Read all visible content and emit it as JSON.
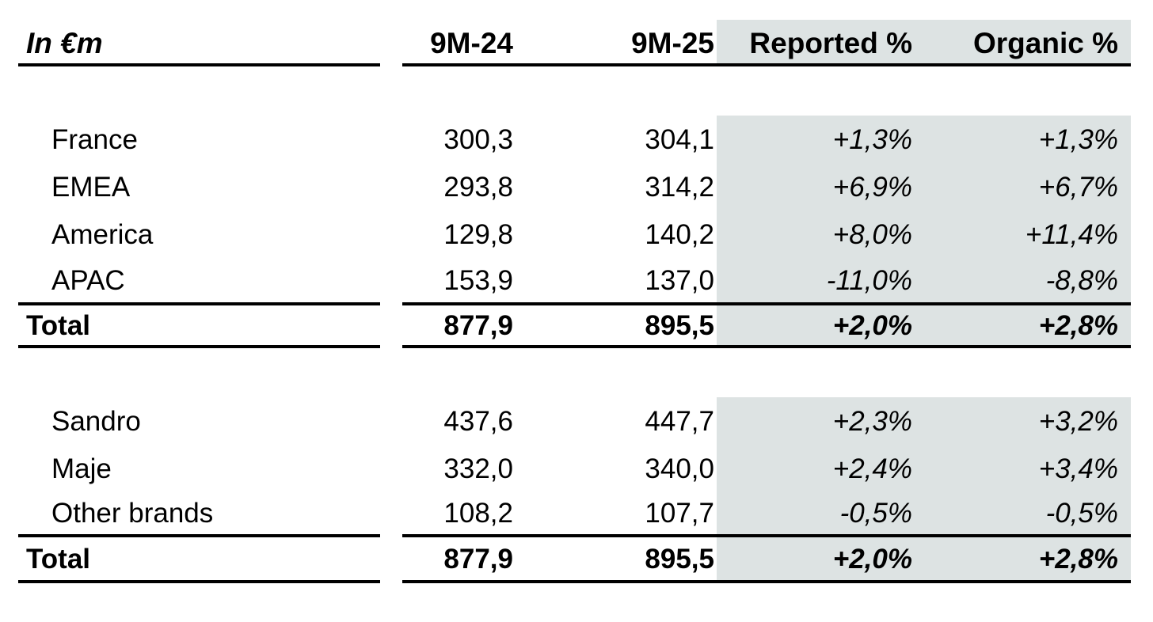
{
  "table": {
    "unit_label": "In €m",
    "columns": {
      "period_prev": "9M-24",
      "period_curr": "9M-25",
      "reported": "Reported %",
      "organic": "Organic %"
    },
    "colors": {
      "highlight": "#dde3e3",
      "text": "#000000",
      "rule": "#000000"
    },
    "sections": [
      {
        "rows": [
          {
            "label": "France",
            "v_prev": "300,3",
            "v_curr": "304,1",
            "reported": "+1,3%",
            "organic": "+1,3%"
          },
          {
            "label": "EMEA",
            "v_prev": "293,8",
            "v_curr": "314,2",
            "reported": "+6,9%",
            "organic": "+6,7%"
          },
          {
            "label": "America",
            "v_prev": "129,8",
            "v_curr": "140,2",
            "reported": "+8,0%",
            "organic": "+11,4%"
          },
          {
            "label": "APAC",
            "v_prev": "153,9",
            "v_curr": "137,0",
            "reported": "-11,0%",
            "organic": "-8,8%"
          }
        ],
        "total": {
          "label": "Total",
          "v_prev": "877,9",
          "v_curr": "895,5",
          "reported": "+2,0%",
          "organic": "+2,8%"
        }
      },
      {
        "rows": [
          {
            "label": "Sandro",
            "v_prev": "437,6",
            "v_curr": "447,7",
            "reported": "+2,3%",
            "organic": "+3,2%"
          },
          {
            "label": "Maje",
            "v_prev": "332,0",
            "v_curr": "340,0",
            "reported": "+2,4%",
            "organic": "+3,4%"
          },
          {
            "label": "Other brands",
            "v_prev": "108,2",
            "v_curr": "107,7",
            "reported": "-0,5%",
            "organic": "-0,5%"
          }
        ],
        "total": {
          "label": "Total",
          "v_prev": "877,9",
          "v_curr": "895,5",
          "reported": "+2,0%",
          "organic": "+2,8%"
        }
      }
    ]
  }
}
